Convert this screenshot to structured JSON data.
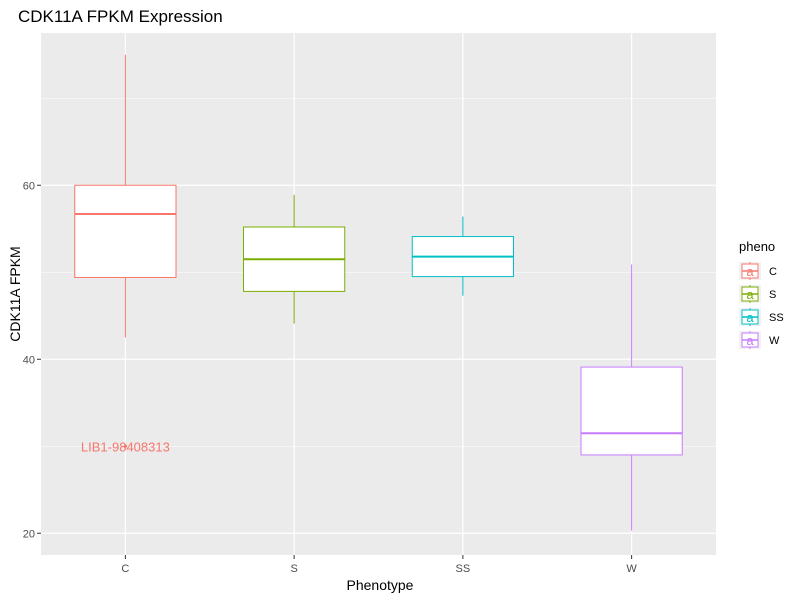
{
  "chart_data": {
    "type": "boxplot",
    "title": "CDK11A FPKM Expression",
    "xlabel": "Phenotype",
    "ylabel": "CDK11A FPKM",
    "ylim": [
      17.5,
      77.5
    ],
    "y_ticks": [
      20,
      40,
      60
    ],
    "categories": [
      "C",
      "S",
      "SS",
      "W"
    ],
    "grid": true,
    "legend": {
      "title": "pheno",
      "position": "right",
      "glyph": "a"
    },
    "series": [
      {
        "name": "C",
        "color": "#F8766D",
        "min": 42.5,
        "q1": 49.4,
        "median": 56.7,
        "q3": 60.0,
        "max": 75.0
      },
      {
        "name": "S",
        "color": "#7CAE00",
        "min": 44.1,
        "q1": 47.8,
        "median": 51.5,
        "q3": 55.2,
        "max": 58.9
      },
      {
        "name": "SS",
        "color": "#00BFC4",
        "min": 47.3,
        "q1": 49.5,
        "median": 51.8,
        "q3": 54.1,
        "max": 56.4
      },
      {
        "name": "W",
        "color": "#C77CFF",
        "min": 20.3,
        "q1": 29.0,
        "median": 31.5,
        "q3": 39.1,
        "max": 50.9
      }
    ],
    "outliers": [
      {
        "category": "C",
        "value": 30.0,
        "label": "LIB1-98408313",
        "color": "#F8766D"
      }
    ]
  }
}
